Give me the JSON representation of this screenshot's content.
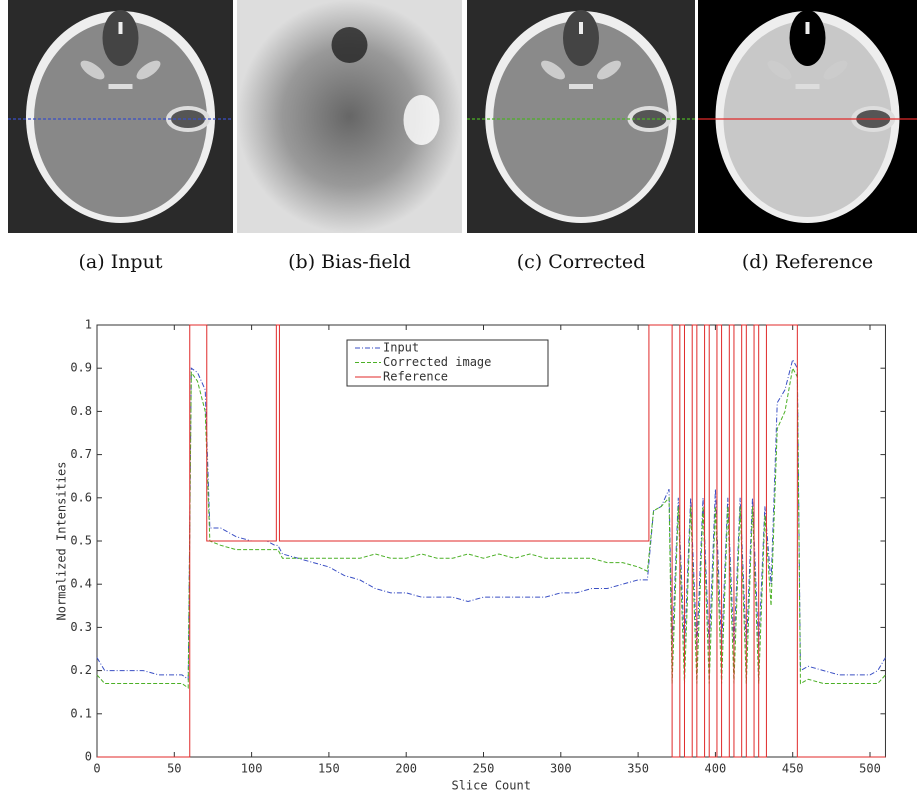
{
  "figure": {
    "captions": [
      "(a) Input",
      "(b) Bias-field",
      "(c) Corrected",
      "(d) Reference"
    ]
  },
  "chart_data": {
    "type": "line",
    "xlabel": "Slice Count",
    "ylabel": "Normalized Intensities",
    "xlim": [
      0,
      510
    ],
    "ylim": [
      0,
      1
    ],
    "xticks": [
      0,
      50,
      100,
      150,
      200,
      250,
      300,
      350,
      400,
      450,
      500
    ],
    "yticks": [
      0,
      0.1,
      0.2,
      0.3,
      0.4,
      0.5,
      0.6,
      0.7,
      0.8,
      0.9,
      1
    ],
    "legend": "upper center",
    "series": [
      {
        "name": "Input",
        "color": "#3a4fc4",
        "dash": "dashdot",
        "x": [
          0,
          5,
          10,
          20,
          30,
          40,
          50,
          55,
          59,
          61,
          65,
          70,
          73,
          80,
          90,
          100,
          110,
          115,
          117,
          120,
          130,
          140,
          150,
          160,
          170,
          180,
          190,
          200,
          210,
          220,
          230,
          240,
          250,
          260,
          270,
          280,
          290,
          300,
          310,
          320,
          330,
          340,
          350,
          356,
          360,
          365,
          370,
          372,
          376,
          380,
          384,
          388,
          392,
          396,
          400,
          404,
          408,
          412,
          416,
          420,
          424,
          428,
          432,
          436,
          440,
          445,
          450,
          453,
          455,
          460,
          470,
          480,
          490,
          500,
          505,
          510
        ],
        "values": [
          0.23,
          0.2,
          0.2,
          0.2,
          0.2,
          0.19,
          0.19,
          0.19,
          0.18,
          0.9,
          0.89,
          0.85,
          0.53,
          0.53,
          0.51,
          0.5,
          0.5,
          0.49,
          0.49,
          0.47,
          0.46,
          0.45,
          0.44,
          0.42,
          0.41,
          0.39,
          0.38,
          0.38,
          0.37,
          0.37,
          0.37,
          0.36,
          0.37,
          0.37,
          0.37,
          0.37,
          0.37,
          0.38,
          0.38,
          0.39,
          0.39,
          0.4,
          0.41,
          0.41,
          0.57,
          0.58,
          0.62,
          0.25,
          0.6,
          0.25,
          0.6,
          0.25,
          0.6,
          0.25,
          0.62,
          0.25,
          0.6,
          0.25,
          0.6,
          0.25,
          0.6,
          0.25,
          0.58,
          0.4,
          0.82,
          0.85,
          0.92,
          0.9,
          0.2,
          0.21,
          0.2,
          0.19,
          0.19,
          0.19,
          0.2,
          0.23
        ]
      },
      {
        "name": "Corrected image",
        "color": "#4cb026",
        "dash": "dashed",
        "x": [
          0,
          5,
          10,
          20,
          30,
          40,
          50,
          55,
          59,
          61,
          65,
          70,
          73,
          80,
          90,
          100,
          110,
          115,
          117,
          120,
          130,
          140,
          150,
          160,
          170,
          180,
          190,
          200,
          210,
          220,
          230,
          240,
          250,
          260,
          270,
          280,
          290,
          300,
          310,
          320,
          330,
          340,
          350,
          356,
          360,
          365,
          370,
          372,
          376,
          380,
          384,
          388,
          392,
          396,
          400,
          404,
          408,
          412,
          416,
          420,
          424,
          428,
          432,
          436,
          440,
          445,
          450,
          453,
          455,
          460,
          470,
          480,
          490,
          500,
          505,
          510
        ],
        "values": [
          0.19,
          0.17,
          0.17,
          0.17,
          0.17,
          0.17,
          0.17,
          0.17,
          0.16,
          0.89,
          0.87,
          0.8,
          0.5,
          0.49,
          0.48,
          0.48,
          0.48,
          0.48,
          0.48,
          0.46,
          0.46,
          0.46,
          0.46,
          0.46,
          0.46,
          0.47,
          0.46,
          0.46,
          0.47,
          0.46,
          0.46,
          0.47,
          0.46,
          0.47,
          0.46,
          0.47,
          0.46,
          0.46,
          0.46,
          0.46,
          0.45,
          0.45,
          0.44,
          0.43,
          0.57,
          0.58,
          0.6,
          0.17,
          0.58,
          0.17,
          0.58,
          0.17,
          0.58,
          0.17,
          0.58,
          0.17,
          0.58,
          0.17,
          0.58,
          0.17,
          0.58,
          0.17,
          0.56,
          0.35,
          0.76,
          0.8,
          0.9,
          0.88,
          0.17,
          0.18,
          0.17,
          0.17,
          0.17,
          0.17,
          0.17,
          0.19
        ]
      },
      {
        "name": "Reference",
        "color": "#e02a2a",
        "dash": "solid",
        "x": [
          0,
          60,
          60,
          71,
          71,
          116,
          116,
          118,
          118,
          357,
          357,
          372,
          372,
          377,
          377,
          380,
          380,
          385,
          385,
          388,
          388,
          393,
          393,
          396,
          396,
          401,
          401,
          404,
          404,
          409,
          409,
          412,
          412,
          417,
          417,
          420,
          420,
          425,
          425,
          428,
          428,
          433,
          433,
          453,
          453,
          510
        ],
        "values": [
          0,
          0,
          1,
          1,
          0.5,
          0.5,
          1,
          1,
          0.5,
          0.5,
          1,
          1,
          0,
          0,
          1,
          1,
          0,
          0,
          1,
          1,
          0,
          0,
          1,
          1,
          0,
          0,
          1,
          1,
          0,
          0,
          1,
          1,
          0,
          0,
          1,
          1,
          0,
          0,
          1,
          1,
          0,
          0,
          1,
          1,
          0,
          0
        ]
      }
    ]
  }
}
